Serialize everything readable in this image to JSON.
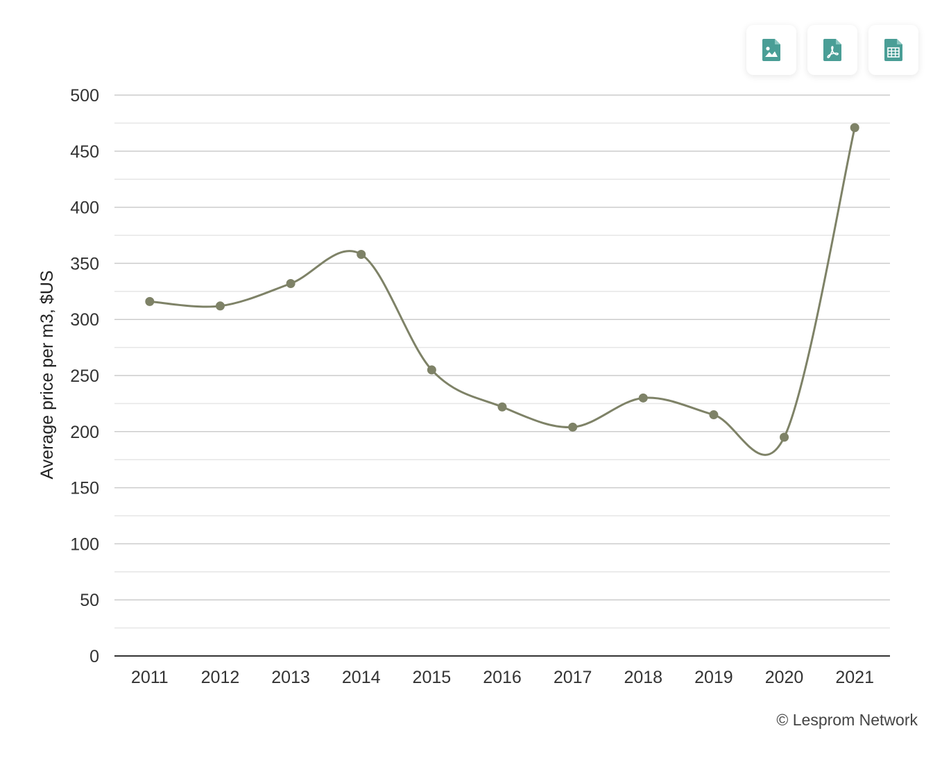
{
  "chart_data": {
    "type": "line",
    "title": "",
    "xlabel": "",
    "ylabel": "Average price per m3, $US",
    "categories": [
      "2011",
      "2012",
      "2013",
      "2014",
      "2015",
      "2016",
      "2017",
      "2018",
      "2019",
      "2020",
      "2021"
    ],
    "series": [
      {
        "name": "",
        "values": [
          316,
          312,
          332,
          358,
          255,
          222,
          204,
          230,
          215,
          195,
          471
        ]
      }
    ],
    "ylim": [
      0,
      500
    ],
    "yticks": [
      "0",
      "50",
      "100",
      "150",
      "200",
      "250",
      "300",
      "350",
      "400",
      "450",
      "500"
    ],
    "grid": true,
    "smooth": true,
    "colors": {
      "series": "#7e8267",
      "grid": "#cccccc",
      "minor_grid": "#e6e6e6",
      "axis": "#333333",
      "icon": "#4a9e96"
    },
    "credits": "© Lesprom Network"
  },
  "export": {
    "buttons": [
      {
        "icon": "file-image-icon"
      },
      {
        "icon": "file-pdf-icon"
      },
      {
        "icon": "file-table-icon"
      }
    ]
  }
}
